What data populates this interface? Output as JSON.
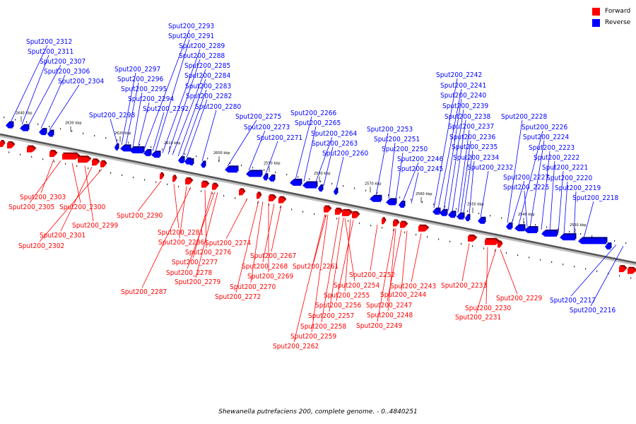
{
  "legend": {
    "forward_label": "Forward",
    "reverse_label": "Reverse",
    "forward_color": "#ff0000",
    "reverse_color": "#0000ff"
  },
  "caption": "Shewanella putrefaciens 200, complete genome. - 0..4840251",
  "ticks": [
    "2640 kbp",
    "2630 kbp",
    "2620 kbp",
    "2610 kbp",
    "2600 kbp",
    "2590 kbp",
    "2580 kbp",
    "2570 kbp",
    "2560 kbp",
    "2550 kbp",
    "2540 kbp",
    "2530 kbp"
  ],
  "reverse_labels": [
    "Sput200_2312",
    "Sput200_2311",
    "Sput200_2307",
    "Sput200_2306",
    "Sput200_2304",
    "Sput200_2298",
    "Sput200_2297",
    "Sput200_2296",
    "Sput200_2295",
    "Sput200_2294",
    "Sput200_2293",
    "Sput200_2292",
    "Sput200_2291",
    "Sput200_2289",
    "Sput200_2288",
    "Sput200_2285",
    "Sput200_2284",
    "Sput200_2283",
    "Sput200_2282",
    "Sput200_2280",
    "Sput200_2275",
    "Sput200_2273",
    "Sput200_2271",
    "Sput200_2266",
    "Sput200_2265",
    "Sput200_2264",
    "Sput200_2263",
    "Sput200_2260",
    "Sput200_2253",
    "Sput200_2251",
    "Sput200_2250",
    "Sput200_2246",
    "Sput200_2245",
    "Sput200_2242",
    "Sput200_2241",
    "Sput200_2240",
    "Sput200_2239",
    "Sput200_2238",
    "Sput200_2237",
    "Sput200_2236",
    "Sput200_2235",
    "Sput200_2234",
    "Sput200_2232",
    "Sput200_2228",
    "Sput200_2227",
    "Sput200_2226",
    "Sput200_2225",
    "Sput200_2224",
    "Sput200_2223",
    "Sput200_2222",
    "Sput200_2221",
    "Sput200_2220",
    "Sput200_2219",
    "Sput200_2218",
    "Sput200_2217",
    "Sput200_2216"
  ],
  "forward_labels": [
    "Sput200_2303",
    "Sput200_2305",
    "Sput200_2300",
    "Sput200_2299",
    "Sput200_2301",
    "Sput200_2302",
    "Sput200_2290",
    "Sput200_2281",
    "Sput200_2286",
    "Sput200_2274",
    "Sput200_2276",
    "Sput200_2277",
    "Sput200_2278",
    "Sput200_2279",
    "Sput200_2287",
    "Sput200_2267",
    "Sput200_2268",
    "Sput200_2269",
    "Sput200_2270",
    "Sput200_2272",
    "Sput200_2261",
    "Sput200_2252",
    "Sput200_2254",
    "Sput200_2255",
    "Sput200_2256",
    "Sput200_2257",
    "Sput200_2258",
    "Sput200_2259",
    "Sput200_2262",
    "Sput200_2243",
    "Sput200_2244",
    "Sput200_2247",
    "Sput200_2248",
    "Sput200_2249",
    "Sput200_2233",
    "Sput200_2229",
    "Sput200_2230",
    "Sput200_2231"
  ]
}
